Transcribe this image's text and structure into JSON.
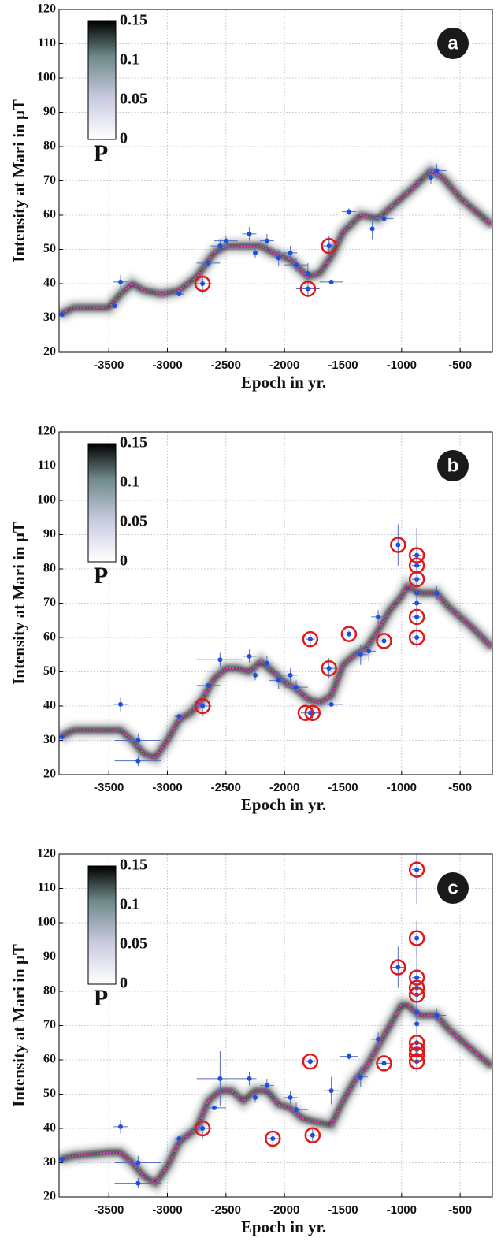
{
  "chart_data": [
    {
      "type": "line",
      "panel_label": "a",
      "xlabel": "Epoch in yr.",
      "ylabel": "Intensity at Mari in μT",
      "xlim": [
        -3925,
        -225
      ],
      "ylim": [
        20,
        120
      ],
      "xticks": [
        -3500,
        -3000,
        -2500,
        -2000,
        -1500,
        -1000,
        -500
      ],
      "yticks": [
        20,
        30,
        40,
        50,
        60,
        70,
        80,
        90,
        100,
        110,
        120
      ],
      "grid": true,
      "colorbar": {
        "label": "P",
        "clim": [
          0,
          0.15
        ],
        "ticks": [
          0,
          0.05,
          0.1,
          0.15
        ]
      },
      "curve": {
        "color": "#ff2fd0",
        "x": [
          -3920,
          -3800,
          -3500,
          -3400,
          -3300,
          -3200,
          -3050,
          -2900,
          -2750,
          -2600,
          -2500,
          -2300,
          -2200,
          -2100,
          -1950,
          -1800,
          -1700,
          -1600,
          -1500,
          -1350,
          -1200,
          -1100,
          -900,
          -750,
          -650,
          -500,
          -225
        ],
        "values": [
          31,
          33,
          33,
          37,
          40,
          38,
          37,
          38,
          42,
          49,
          51,
          51,
          51,
          49,
          47,
          42,
          43,
          48,
          55,
          60,
          59,
          62,
          68,
          73,
          71,
          65,
          57
        ]
      },
      "points": {
        "color": "#1a4fe8",
        "x": [
          -3900,
          -3400,
          -3450,
          -2900,
          -2700,
          -2650,
          -2550,
          -2500,
          -2300,
          -2250,
          -2150,
          -2050,
          -1950,
          -1900,
          -1800,
          -1800,
          -1620,
          -1600,
          -1450,
          -1250,
          -1150,
          -750,
          -700
        ],
        "values": [
          31,
          40.5,
          33.5,
          37,
          40,
          46,
          51,
          52.5,
          54.5,
          49,
          52.5,
          47.5,
          49,
          45.5,
          43,
          38.5,
          51,
          40.5,
          61,
          56,
          59,
          71,
          73
        ],
        "xerr": [
          0,
          60,
          0,
          40,
          80,
          100,
          80,
          100,
          60,
          0,
          60,
          80,
          60,
          100,
          80,
          100,
          60,
          100,
          60,
          60,
          80,
          60,
          80
        ],
        "yerr": [
          0,
          2,
          0,
          0,
          3,
          0,
          2,
          1.5,
          2,
          1.5,
          2,
          2.5,
          2,
          2,
          3,
          2,
          3,
          0,
          1,
          3,
          3,
          2,
          2
        ]
      },
      "rejected": {
        "color": "#e01818",
        "x": [
          -2700,
          -1800,
          -1620
        ],
        "values": [
          40,
          38.5,
          51
        ]
      }
    },
    {
      "type": "line",
      "panel_label": "b",
      "xlabel": "Epoch in yr.",
      "ylabel": "Intensity at Mari in μT",
      "xlim": [
        -3925,
        -225
      ],
      "ylim": [
        20,
        120
      ],
      "xticks": [
        -3500,
        -3000,
        -2500,
        -2000,
        -1500,
        -1000,
        -500
      ],
      "yticks": [
        20,
        30,
        40,
        50,
        60,
        70,
        80,
        90,
        100,
        110,
        120
      ],
      "grid": true,
      "colorbar": {
        "label": "P",
        "clim": [
          0,
          0.15
        ],
        "ticks": [
          0,
          0.05,
          0.1,
          0.15
        ]
      },
      "curve": {
        "color": "#ff2fd0",
        "x": [
          -3920,
          -3800,
          -3500,
          -3400,
          -3300,
          -3200,
          -3100,
          -3000,
          -2900,
          -2800,
          -2700,
          -2600,
          -2500,
          -2400,
          -2300,
          -2200,
          -2100,
          -2000,
          -1900,
          -1800,
          -1700,
          -1600,
          -1500,
          -1400,
          -1300,
          -1200,
          -1100,
          -1000,
          -950,
          -850,
          -700,
          -600,
          -400,
          -225
        ],
        "values": [
          31,
          33,
          33,
          33,
          30,
          26,
          25,
          30,
          36,
          38,
          42,
          48,
          51,
          51,
          50,
          53,
          50,
          47,
          45,
          42,
          41,
          43,
          52,
          55,
          57,
          62,
          68,
          72,
          75,
          73,
          73,
          69,
          63,
          57
        ]
      },
      "points": {
        "color": "#1a4fe8",
        "x": [
          -3900,
          -3400,
          -3250,
          -3250,
          -2900,
          -2700,
          -2650,
          -2550,
          -2300,
          -2250,
          -2150,
          -2050,
          -1950,
          -1900,
          -1780,
          -1780,
          -1760,
          -1620,
          -1600,
          -1450,
          -1350,
          -1280,
          -1200,
          -1150,
          -1030,
          -870,
          -870,
          -870,
          -870,
          -870,
          -870,
          -870,
          -700
        ],
        "values": [
          31,
          40.5,
          30,
          24,
          37,
          40,
          46,
          53.5,
          54.5,
          49,
          52.5,
          47.5,
          49,
          45.5,
          59.5,
          38,
          38,
          51,
          40.5,
          61,
          55,
          56,
          66,
          59,
          87,
          60,
          66,
          70,
          73,
          77,
          81,
          84,
          73
        ],
        "xerr": [
          0,
          60,
          200,
          200,
          40,
          80,
          100,
          200,
          60,
          0,
          60,
          80,
          60,
          100,
          40,
          80,
          60,
          60,
          100,
          80,
          60,
          60,
          60,
          60,
          60,
          40,
          40,
          40,
          40,
          40,
          40,
          40,
          80
        ],
        "yerr": [
          0,
          2,
          2,
          1.5,
          0,
          3,
          0,
          2,
          2,
          1.5,
          2,
          2.5,
          2,
          2,
          1.5,
          2,
          2,
          3,
          0,
          1,
          3,
          3,
          2,
          3,
          6,
          3,
          4,
          3,
          3,
          5,
          6,
          8,
          2
        ]
      },
      "rejected": {
        "color": "#e01818",
        "x": [
          -2700,
          -1780,
          -1820,
          -1760,
          -1620,
          -1450,
          -1150,
          -1030,
          -870,
          -870,
          -870,
          -870,
          -870
        ],
        "values": [
          40,
          59.5,
          38,
          38,
          51,
          61,
          59,
          87,
          60,
          66,
          77,
          81,
          84
        ]
      }
    },
    {
      "type": "line",
      "panel_label": "c",
      "xlabel": "Epoch in yr.",
      "ylabel": "Intensity at Mari in μT",
      "xlim": [
        -3925,
        -225
      ],
      "ylim": [
        20,
        120
      ],
      "xticks": [
        -3500,
        -3000,
        -2500,
        -2000,
        -1500,
        -1000,
        -500
      ],
      "yticks": [
        20,
        30,
        40,
        50,
        60,
        70,
        80,
        90,
        100,
        110,
        120
      ],
      "grid": true,
      "colorbar": {
        "label": "P",
        "clim": [
          0,
          0.15
        ],
        "ticks": [
          0,
          0.05,
          0.1,
          0.15
        ]
      },
      "curve": {
        "color": "#ff2fd0",
        "x": [
          -3920,
          -3800,
          -3500,
          -3400,
          -3300,
          -3200,
          -3100,
          -3000,
          -2900,
          -2750,
          -2650,
          -2550,
          -2450,
          -2350,
          -2250,
          -2150,
          -2050,
          -1950,
          -1850,
          -1750,
          -1600,
          -1500,
          -1400,
          -1300,
          -1200,
          -1100,
          -1000,
          -950,
          -850,
          -700,
          -600,
          -400,
          -225
        ],
        "values": [
          31,
          32,
          33,
          33,
          30,
          26,
          24,
          29,
          36,
          40,
          48,
          51,
          51,
          48,
          51,
          51,
          47,
          46,
          43,
          42,
          41,
          48,
          54,
          58,
          64,
          70,
          76,
          76,
          73,
          73,
          69,
          63,
          58
        ]
      },
      "points": {
        "color": "#1a4fe8",
        "x": [
          -3900,
          -3400,
          -3250,
          -3250,
          -2900,
          -2700,
          -2600,
          -2550,
          -2300,
          -2250,
          -2150,
          -2100,
          -1950,
          -1900,
          -1780,
          -1760,
          -1600,
          -1450,
          -1350,
          -1200,
          -1150,
          -1030,
          -870,
          -870,
          -870,
          -870,
          -870,
          -870,
          -870,
          -870,
          -870,
          -870,
          -870,
          -700
        ],
        "values": [
          31,
          40.5,
          30,
          24,
          37,
          40,
          46,
          54.5,
          54.5,
          49,
          52.5,
          37,
          49,
          45.5,
          59.5,
          38,
          51,
          61,
          55,
          66,
          59,
          87,
          59.5,
          61.5,
          63,
          65,
          70.5,
          74,
          79,
          81,
          84,
          95.5,
          115.5,
          73
        ],
        "xerr": [
          0,
          60,
          200,
          200,
          40,
          80,
          100,
          200,
          60,
          0,
          60,
          60,
          60,
          100,
          40,
          60,
          60,
          80,
          60,
          60,
          60,
          60,
          40,
          40,
          40,
          40,
          40,
          40,
          40,
          40,
          40,
          40,
          40,
          80
        ],
        "yerr": [
          0,
          2,
          2,
          1.5,
          0,
          3,
          0,
          8,
          2,
          1.5,
          2,
          3,
          2,
          2,
          1.5,
          2,
          4,
          1,
          3,
          2,
          3,
          6,
          3,
          3,
          3,
          4,
          3,
          3,
          5,
          6,
          8,
          5,
          10,
          2
        ]
      },
      "rejected": {
        "color": "#e01818",
        "x": [
          -2700,
          -2100,
          -1780,
          -1760,
          -1150,
          -1030,
          -870,
          -870,
          -870,
          -870,
          -870,
          -870,
          -870,
          -870,
          -870
        ],
        "values": [
          40,
          37,
          59.5,
          38,
          59,
          87,
          59.5,
          61.5,
          63,
          65,
          79,
          81,
          84,
          95.5,
          115.5
        ]
      }
    }
  ]
}
